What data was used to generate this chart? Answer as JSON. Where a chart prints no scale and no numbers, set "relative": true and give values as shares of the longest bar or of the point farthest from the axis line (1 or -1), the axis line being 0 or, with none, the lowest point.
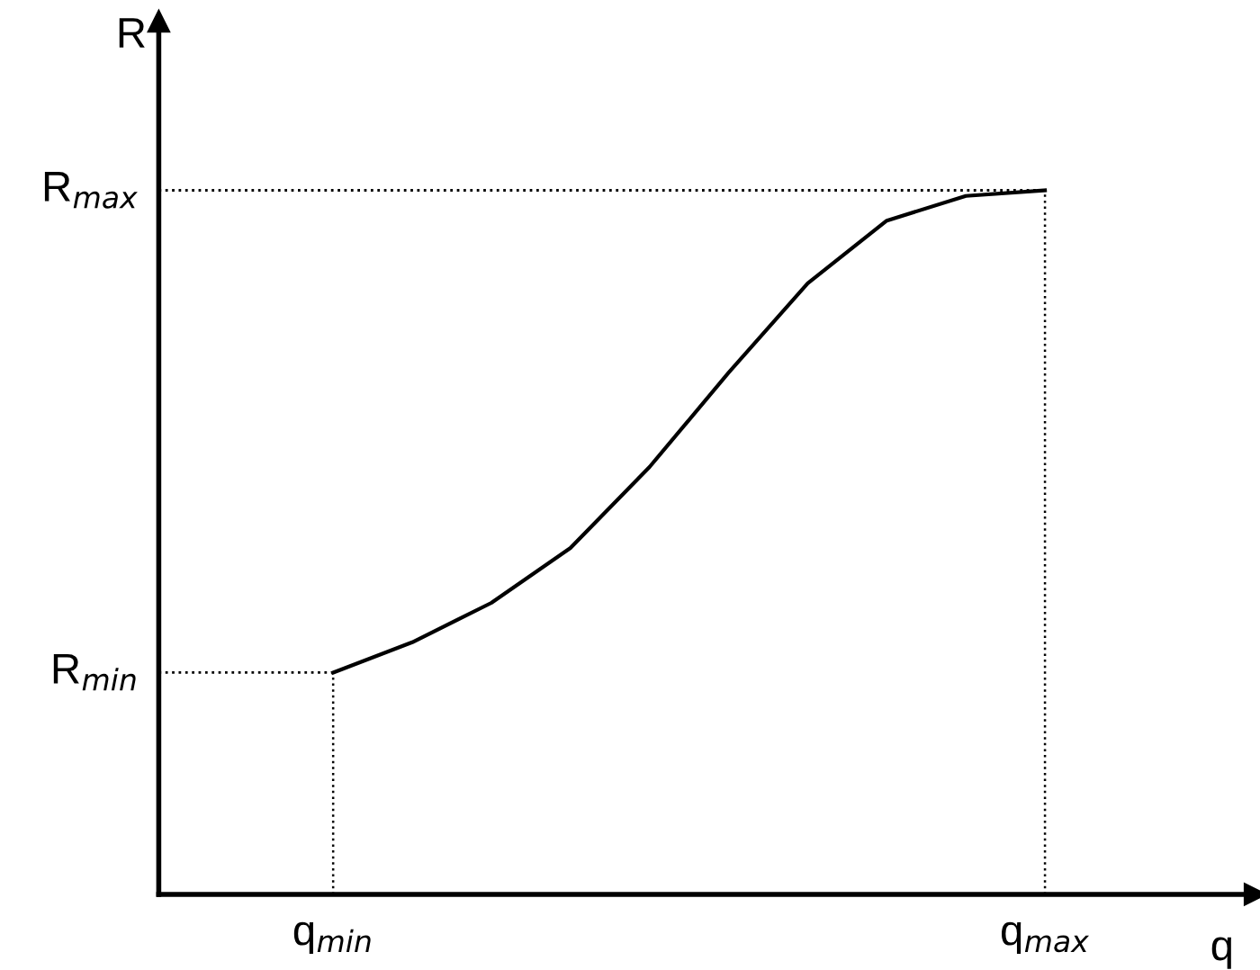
{
  "chart_data": {
    "type": "line",
    "relative": true,
    "xlabel": "q",
    "ylabel": "R",
    "color": "#000000",
    "line_style": "solid",
    "marker": "none",
    "grid": false,
    "categories": [
      "q$_{min}$",
      null,
      null,
      null,
      null,
      null,
      null,
      null,
      null,
      "q$_{max}$"
    ],
    "values": [
      0.315,
      0.358,
      0.414,
      0.492,
      0.607,
      0.741,
      0.868,
      0.957,
      0.992,
      1
    ],
    "ref_lines": [
      {
        "axis": "y",
        "value": 0.315,
        "label": "R$_{min}$",
        "line_style": "dotted",
        "color": "#000000"
      },
      {
        "axis": "y",
        "value": 1,
        "label": "R$_{max}$",
        "line_style": "dotted",
        "color": "#000000"
      },
      {
        "axis": "x",
        "value": "q$_{min}$",
        "line_style": "dotted",
        "color": "#000000"
      },
      {
        "axis": "x",
        "value": "q$_{max}$",
        "line_style": "dotted",
        "color": "#000000"
      }
    ]
  }
}
